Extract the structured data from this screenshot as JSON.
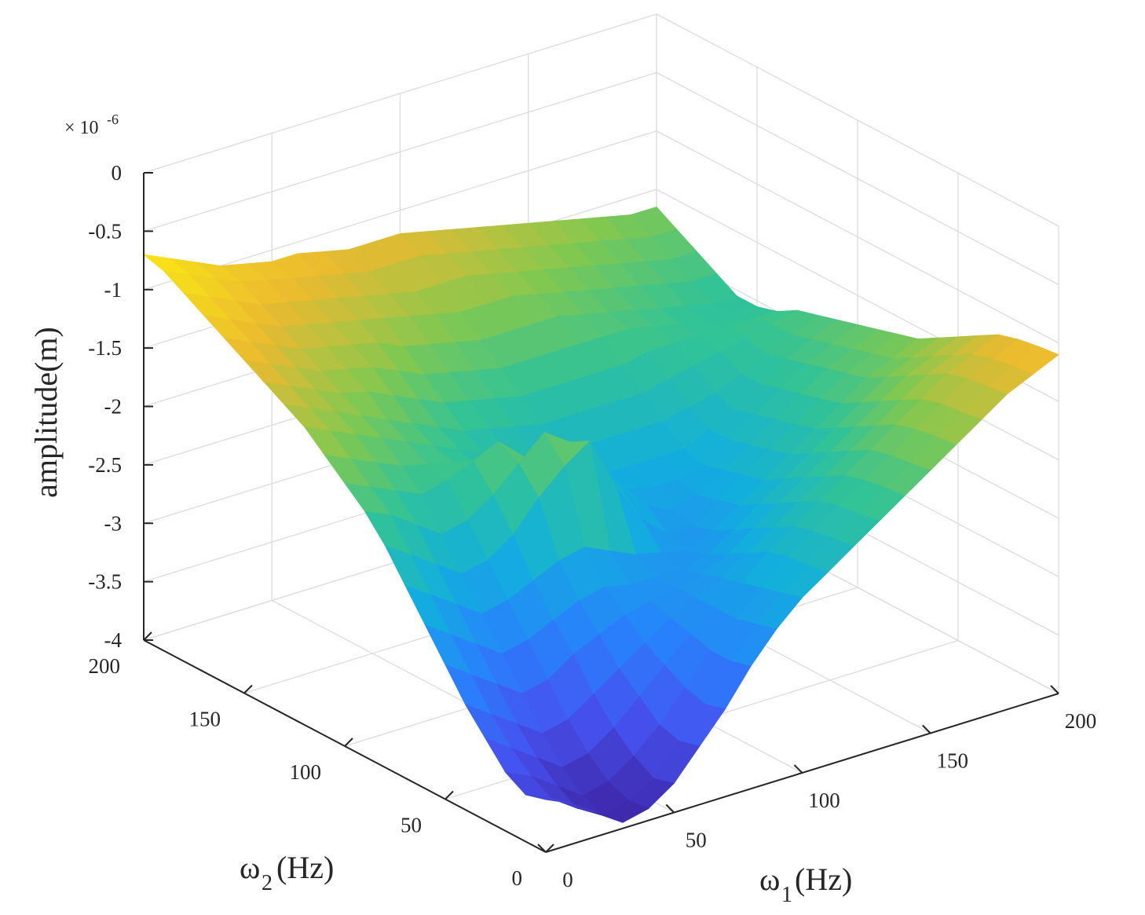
{
  "chart_data": {
    "type": "surface3d",
    "colormap": "parula",
    "grid": true,
    "zlabel": "amplitude(m)",
    "z_exponent_label": "× 10",
    "z_exponent_power": "-6",
    "z_ticks": [
      "0",
      "-0.5",
      "-1",
      "-1.5",
      "-2",
      "-2.5",
      "-3",
      "-3.5",
      "-4"
    ],
    "z_tick_values": [
      0,
      -0.5,
      -1,
      -1.5,
      -2,
      -2.5,
      -3,
      -3.5,
      -4
    ],
    "zlim": [
      -4,
      0
    ],
    "x_axis": {
      "label_main": "ω",
      "label_sub": "1",
      "label_unit": "(Hz)",
      "ticks": [
        "0",
        "50",
        "100",
        "150",
        "200"
      ],
      "tick_values": [
        0,
        50,
        100,
        150,
        200
      ],
      "lim": [
        0,
        200
      ]
    },
    "y_axis": {
      "label_main": "ω",
      "label_sub": "2",
      "label_unit": "(Hz)",
      "ticks": [
        "0",
        "50",
        "100",
        "150",
        "200"
      ],
      "tick_values": [
        0,
        50,
        100,
        150,
        200
      ],
      "lim": [
        0,
        200
      ]
    },
    "x": [
      0,
      10,
      20,
      30,
      40,
      50,
      60,
      70,
      80,
      90,
      100,
      110,
      120,
      130,
      140,
      150,
      160,
      170,
      180,
      190,
      200
    ],
    "y": [
      0,
      10,
      20,
      30,
      40,
      50,
      60,
      70,
      80,
      90,
      100,
      110,
      120,
      130,
      140,
      150,
      160,
      170,
      180,
      190,
      200
    ],
    "z_rows": [
      [
        -3.55,
        -3.65,
        -3.8,
        -3.95,
        -3.9,
        -3.75,
        -3.5,
        -3.25,
        -2.95,
        -2.7,
        -2.5,
        -2.35,
        -2.2,
        -2.05,
        -1.9,
        -1.75,
        -1.6,
        -1.45,
        -1.3,
        -1.2,
        -1.1
      ],
      [
        -3.6,
        -3.7,
        -3.85,
        -3.98,
        -3.92,
        -3.8,
        -3.55,
        -3.3,
        -3.0,
        -2.75,
        -2.55,
        -2.38,
        -2.22,
        -2.08,
        -1.92,
        -1.78,
        -1.62,
        -1.48,
        -1.33,
        -1.22,
        -1.12
      ],
      [
        -3.5,
        -3.6,
        -3.75,
        -3.9,
        -3.85,
        -3.7,
        -3.5,
        -3.25,
        -3.0,
        -2.8,
        -2.6,
        -2.4,
        -2.25,
        -2.1,
        -1.95,
        -1.8,
        -1.65,
        -1.5,
        -1.35,
        -1.25,
        -1.15
      ],
      [
        -3.3,
        -3.45,
        -3.6,
        -3.75,
        -3.7,
        -3.55,
        -3.35,
        -3.15,
        -2.95,
        -2.8,
        -2.65,
        -2.45,
        -2.3,
        -2.15,
        -2.0,
        -1.85,
        -1.7,
        -1.55,
        -1.4,
        -1.3,
        -1.2
      ],
      [
        -3.1,
        -3.25,
        -3.4,
        -3.55,
        -3.5,
        -3.35,
        -3.2,
        -3.05,
        -2.9,
        -2.8,
        -2.7,
        -2.55,
        -2.4,
        -2.25,
        -2.1,
        -1.95,
        -1.8,
        -1.65,
        -1.5,
        -1.4,
        -1.3
      ],
      [
        -2.85,
        -3.0,
        -3.15,
        -3.3,
        -3.25,
        -3.1,
        -3.0,
        -2.9,
        -2.85,
        -2.8,
        -2.75,
        -2.65,
        -2.5,
        -2.35,
        -2.2,
        -2.05,
        -1.9,
        -1.75,
        -1.6,
        -1.5,
        -1.4
      ],
      [
        -2.6,
        -2.75,
        -2.9,
        -3.05,
        -3.0,
        -2.9,
        -2.8,
        -2.75,
        -2.8,
        -2.8,
        -2.8,
        -2.75,
        -2.6,
        -2.45,
        -2.3,
        -2.15,
        -2.0,
        -1.85,
        -1.7,
        -1.6,
        -1.5
      ],
      [
        -2.35,
        -2.5,
        -2.65,
        -2.8,
        -2.75,
        -2.65,
        -2.55,
        -2.5,
        -2.6,
        -2.7,
        -2.75,
        -2.8,
        -2.7,
        -2.55,
        -2.4,
        -2.25,
        -2.1,
        -1.95,
        -1.8,
        -1.7,
        -1.6
      ],
      [
        -2.1,
        -2.25,
        -2.4,
        -2.55,
        -2.5,
        -2.35,
        -2.1,
        -1.9,
        -1.75,
        -2.2,
        -2.55,
        -2.75,
        -2.75,
        -2.6,
        -2.45,
        -2.3,
        -2.15,
        -2.0,
        -1.85,
        -1.75,
        -1.65
      ],
      [
        -1.9,
        -2.0,
        -2.15,
        -2.3,
        -2.25,
        -2.1,
        -1.9,
        -1.7,
        -1.85,
        -2.1,
        -2.4,
        -2.6,
        -2.7,
        -2.65,
        -2.5,
        -2.35,
        -2.2,
        -2.05,
        -1.9,
        -1.8,
        -1.7
      ],
      [
        -1.75,
        -1.85,
        -1.95,
        -2.05,
        -2.0,
        -1.9,
        -1.8,
        -2.0,
        -2.2,
        -2.35,
        -2.45,
        -2.55,
        -2.6,
        -2.6,
        -2.55,
        -2.4,
        -2.25,
        -2.1,
        -1.95,
        -1.85,
        -1.75
      ],
      [
        -1.6,
        -1.7,
        -1.8,
        -1.9,
        -1.95,
        -2.0,
        -2.1,
        -2.2,
        -2.3,
        -2.4,
        -2.45,
        -2.5,
        -2.5,
        -2.5,
        -2.5,
        -2.4,
        -2.3,
        -2.15,
        -2.0,
        -1.9,
        -1.8
      ],
      [
        -1.45,
        -1.55,
        -1.65,
        -1.75,
        -1.85,
        -1.95,
        -2.05,
        -2.15,
        -2.25,
        -2.3,
        -2.35,
        -2.35,
        -2.35,
        -2.35,
        -2.35,
        -2.3,
        -2.25,
        -2.15,
        -2.05,
        -1.95,
        -1.85
      ],
      [
        -1.35,
        -1.45,
        -1.55,
        -1.65,
        -1.75,
        -1.85,
        -1.95,
        -2.05,
        -2.1,
        -2.15,
        -2.2,
        -2.2,
        -2.2,
        -2.2,
        -2.2,
        -2.15,
        -2.1,
        -2.05,
        -2.0,
        -1.95,
        -1.9
      ],
      [
        -1.25,
        -1.35,
        -1.45,
        -1.55,
        -1.6,
        -1.7,
        -1.8,
        -1.9,
        -1.95,
        -2.0,
        -2.05,
        -2.05,
        -2.05,
        -2.05,
        -2.05,
        -2.0,
        -2.0,
        -2.0,
        -2.0,
        -2.0,
        -2.0
      ],
      [
        -1.15,
        -1.25,
        -1.35,
        -1.45,
        -1.5,
        -1.55,
        -1.65,
        -1.75,
        -1.8,
        -1.85,
        -1.9,
        -1.9,
        -1.9,
        -1.9,
        -1.9,
        -1.9,
        -1.95,
        -2.0,
        -2.05,
        -2.05,
        -2.05
      ],
      [
        -1.05,
        -1.15,
        -1.25,
        -1.35,
        -1.4,
        -1.45,
        -1.5,
        -1.6,
        -1.65,
        -1.7,
        -1.75,
        -1.75,
        -1.75,
        -1.75,
        -1.8,
        -1.85,
        -1.9,
        -1.95,
        -2.0,
        -2.05,
        -2.05
      ],
      [
        -0.95,
        -1.05,
        -1.15,
        -1.25,
        -1.3,
        -1.35,
        -1.4,
        -1.45,
        -1.5,
        -1.55,
        -1.6,
        -1.6,
        -1.6,
        -1.65,
        -1.7,
        -1.75,
        -1.8,
        -1.85,
        -1.9,
        -1.95,
        -1.95
      ],
      [
        -0.85,
        -0.95,
        -1.05,
        -1.15,
        -1.2,
        -1.25,
        -1.3,
        -1.35,
        -1.4,
        -1.45,
        -1.45,
        -1.45,
        -1.5,
        -1.55,
        -1.6,
        -1.65,
        -1.7,
        -1.75,
        -1.8,
        -1.85,
        -1.85
      ],
      [
        -0.75,
        -0.85,
        -0.95,
        -1.05,
        -1.1,
        -1.15,
        -1.2,
        -1.25,
        -1.3,
        -1.3,
        -1.3,
        -1.35,
        -1.4,
        -1.45,
        -1.5,
        -1.55,
        -1.6,
        -1.65,
        -1.7,
        -1.75,
        -1.75
      ],
      [
        -0.7,
        -0.8,
        -0.9,
        -1.0,
        -1.05,
        -1.1,
        -1.1,
        -1.15,
        -1.2,
        -1.2,
        -1.2,
        -1.25,
        -1.3,
        -1.35,
        -1.4,
        -1.45,
        -1.5,
        -1.55,
        -1.6,
        -1.65,
        -1.65
      ]
    ]
  }
}
